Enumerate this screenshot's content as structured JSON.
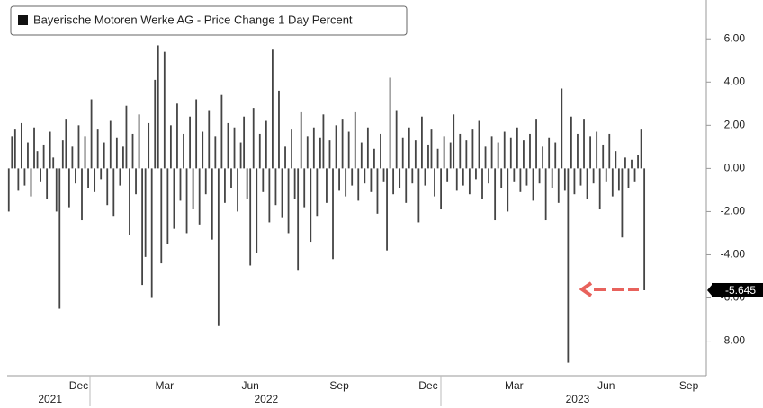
{
  "chart_data": {
    "type": "bar",
    "series": [
      {
        "name": "Bayerische Motoren Werke AG - Price Change 1 Day Percent",
        "color": "#444444",
        "values": [
          -2.0,
          1.5,
          1.8,
          -1.0,
          2.1,
          -0.8,
          1.2,
          -1.3,
          1.9,
          0.8,
          -0.6,
          1.1,
          -1.4,
          1.7,
          0.5,
          -2.0,
          -6.5,
          1.3,
          2.3,
          -1.8,
          1.0,
          -0.7,
          2.0,
          -2.4,
          1.5,
          -0.9,
          3.2,
          -1.1,
          1.8,
          -0.5,
          1.2,
          -1.7,
          2.2,
          -2.2,
          1.4,
          -0.8,
          1.0,
          2.9,
          -3.1,
          1.6,
          -1.2,
          2.5,
          -5.4,
          -4.1,
          2.1,
          -6.0,
          4.1,
          5.7,
          -4.4,
          5.4,
          -3.5,
          2.0,
          -2.8,
          3.0,
          -1.5,
          1.6,
          -3.0,
          2.4,
          -1.9,
          3.2,
          -2.6,
          1.7,
          -1.2,
          2.7,
          -3.3,
          1.5,
          -7.3,
          3.4,
          -1.6,
          2.1,
          -0.9,
          1.9,
          -2.0,
          1.2,
          2.4,
          -1.4,
          -4.5,
          2.8,
          -3.9,
          1.6,
          -1.1,
          2.2,
          -2.5,
          5.5,
          -1.7,
          3.6,
          -2.3,
          1.0,
          -3.0,
          1.8,
          -1.4,
          -4.7,
          2.6,
          -1.8,
          1.5,
          -3.4,
          1.9,
          -2.2,
          1.4,
          2.5,
          -1.6,
          1.3,
          -4.2,
          2.0,
          -1.0,
          2.3,
          -1.3,
          1.7,
          -0.8,
          2.6,
          -1.5,
          1.2,
          -0.7,
          1.9,
          -1.1,
          0.9,
          -2.1,
          1.6,
          -0.6,
          -3.8,
          4.2,
          -1.2,
          2.7,
          -0.9,
          1.4,
          -1.6,
          1.9,
          -0.7,
          1.3,
          -2.5,
          2.4,
          -0.8,
          1.1,
          1.8,
          -1.3,
          0.9,
          -1.9,
          1.5,
          -0.6,
          1.2,
          2.5,
          -1.0,
          1.6,
          -0.8,
          1.3,
          -1.2,
          1.8,
          -0.5,
          2.2,
          -1.4,
          1.0,
          -0.7,
          1.5,
          -2.4,
          1.2,
          -0.9,
          1.7,
          -2.0,
          1.4,
          -0.6,
          1.9,
          -1.1,
          1.3,
          -0.8,
          1.6,
          -1.5,
          2.3,
          -0.7,
          1.0,
          -2.4,
          1.4,
          -0.9,
          1.2,
          -1.6,
          3.7,
          -1.0,
          -9.0,
          2.4,
          -1.2,
          1.6,
          -0.8,
          2.3,
          -1.4,
          1.5,
          -0.7,
          1.7,
          -1.9,
          1.1,
          -0.6,
          1.6,
          -1.3,
          0.8,
          -1.0,
          -3.2,
          0.5,
          -0.9,
          0.4,
          -0.6,
          0.6,
          1.8,
          -5.645,
          null,
          null,
          null,
          null,
          null,
          null,
          null,
          null,
          null,
          null,
          null,
          null,
          null,
          null,
          null,
          null,
          null,
          null,
          null
        ]
      }
    ],
    "categories": [
      null,
      null,
      null,
      null,
      null,
      null,
      null,
      null,
      null,
      null,
      null,
      null,
      null,
      null,
      null,
      null,
      null,
      null,
      null,
      null,
      null,
      null,
      "Dec",
      null,
      null,
      null,
      null,
      null,
      null,
      null,
      null,
      null,
      null,
      null,
      null,
      null,
      null,
      null,
      null,
      null,
      null,
      null,
      null,
      null,
      null,
      null,
      null,
      null,
      null,
      "Mar",
      null,
      null,
      null,
      null,
      null,
      null,
      null,
      null,
      null,
      null,
      null,
      null,
      null,
      null,
      null,
      null,
      null,
      null,
      null,
      null,
      null,
      null,
      null,
      null,
      null,
      null,
      "Jun",
      null,
      null,
      null,
      null,
      null,
      null,
      null,
      null,
      null,
      null,
      null,
      null,
      null,
      null,
      null,
      null,
      null,
      null,
      null,
      null,
      null,
      null,
      null,
      null,
      null,
      null,
      null,
      "Sep",
      null,
      null,
      null,
      null,
      null,
      null,
      null,
      null,
      null,
      null,
      null,
      null,
      null,
      null,
      null,
      null,
      null,
      null,
      null,
      null,
      null,
      null,
      null,
      null,
      null,
      null,
      null,
      "Dec",
      null,
      null,
      null,
      null,
      null,
      null,
      null,
      null,
      null,
      null,
      null,
      null,
      null,
      null,
      null,
      null,
      null,
      null,
      null,
      null,
      null,
      null,
      null,
      null,
      null,
      null,
      "Mar",
      null,
      null,
      null,
      null,
      null,
      null,
      null,
      null,
      null,
      null,
      null,
      null,
      null,
      null,
      null,
      null,
      null,
      null,
      null,
      null,
      null,
      null,
      null,
      null,
      null,
      null,
      null,
      null,
      "Jun",
      null,
      null,
      null,
      null,
      null,
      null,
      null,
      null,
      null,
      null,
      null,
      null,
      null,
      null,
      null,
      null,
      null,
      null,
      null,
      null,
      null,
      null,
      null,
      null,
      null,
      "Sep",
      null,
      null,
      null,
      null,
      null
    ],
    "years": [
      null,
      null,
      null,
      null,
      null,
      null,
      null,
      null,
      null,
      null,
      null,
      null,
      null,
      "2021",
      null,
      null,
      null,
      null,
      null,
      null,
      null,
      null,
      null,
      null,
      null,
      null,
      null,
      null,
      null,
      null,
      null,
      null,
      null,
      null,
      null,
      null,
      null,
      null,
      null,
      null,
      null,
      null,
      null,
      null,
      null,
      null,
      null,
      null,
      null,
      null,
      null,
      null,
      null,
      null,
      null,
      null,
      null,
      null,
      null,
      null,
      null,
      null,
      null,
      null,
      null,
      null,
      null,
      null,
      null,
      null,
      null,
      null,
      null,
      null,
      null,
      null,
      null,
      null,
      null,
      null,
      null,
      "2022",
      null,
      null,
      null,
      null,
      null,
      null,
      null,
      null,
      null,
      null,
      null,
      null,
      null,
      null,
      null,
      null,
      null,
      null,
      null,
      null,
      null,
      null,
      null,
      null,
      null,
      null,
      null,
      null,
      null,
      null,
      null,
      null,
      null,
      null,
      null,
      null,
      null,
      null,
      null,
      null,
      null,
      null,
      null,
      null,
      null,
      null,
      null,
      null,
      null,
      null,
      null,
      null,
      null,
      null,
      null,
      null,
      null,
      null,
      null,
      null,
      null,
      null,
      null,
      null,
      null,
      null,
      null,
      null,
      null,
      null,
      null,
      null,
      null,
      null,
      null,
      null,
      null,
      null,
      null,
      null,
      null,
      null,
      null,
      null,
      null,
      null,
      null,
      null,
      null,
      null,
      null,
      null,
      null,
      null,
      null,
      null,
      null,
      "2023",
      null,
      null,
      null,
      null,
      null,
      null,
      null,
      null,
      null,
      null,
      null,
      null,
      null,
      null,
      null,
      null,
      null,
      null,
      null,
      null,
      null,
      null,
      null,
      null,
      null,
      null,
      null,
      null,
      null,
      null,
      null,
      null,
      null,
      null,
      null,
      null,
      null,
      null,
      null,
      null
    ],
    "ylim": [
      -9.6,
      7.8
    ],
    "yticks": [
      {
        "value": 6,
        "label": "6.00"
      },
      {
        "value": 4,
        "label": "4.00"
      },
      {
        "value": 2,
        "label": "2.00"
      },
      {
        "value": 0,
        "label": "0.00"
      },
      {
        "value": -2,
        "label": "-2.00"
      },
      {
        "value": -4,
        "label": "-4.00"
      },
      {
        "value": -6,
        "label": "-6.00"
      },
      {
        "value": -8,
        "label": "-8.00"
      }
    ],
    "last_label": "-5.645"
  }
}
